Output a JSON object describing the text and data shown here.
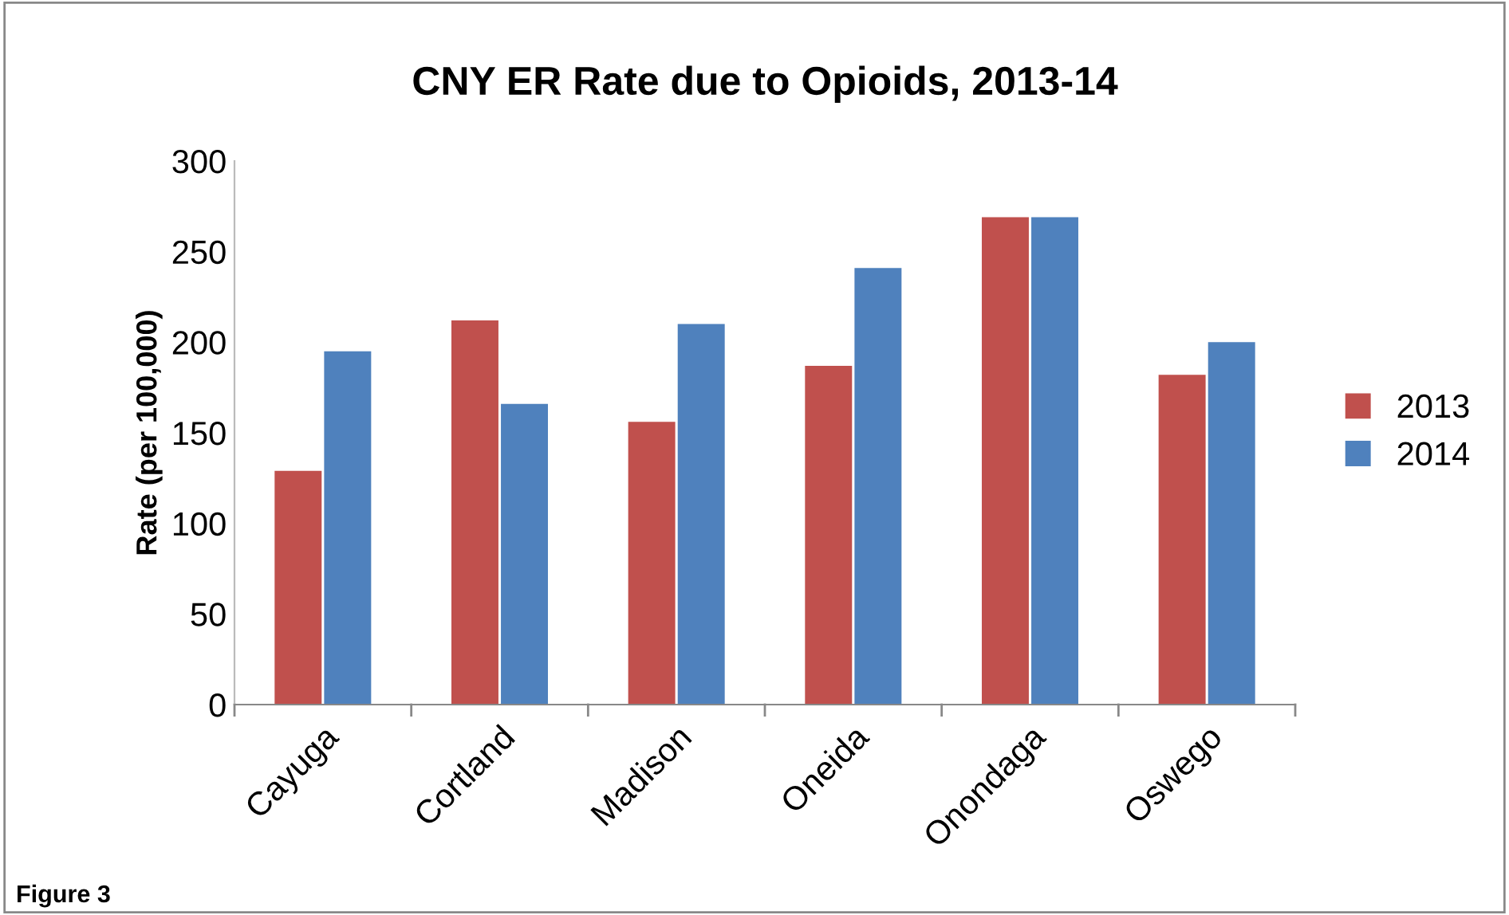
{
  "chart_data": {
    "type": "bar",
    "title": "CNY ER Rate due to Opioids, 2013-14",
    "ylabel": "Rate (per 100,000)",
    "categories": [
      "Cayuga",
      "Cortland",
      "Madison",
      "Oneida",
      "Onondaga",
      "Oswego"
    ],
    "series": [
      {
        "name": "2013",
        "color": "#c0504d",
        "values": [
          129,
          212,
          156,
          187,
          269,
          182
        ]
      },
      {
        "name": "2014",
        "color": "#4f81bd",
        "values": [
          195,
          166,
          210,
          241,
          269,
          200
        ]
      }
    ],
    "ylim": [
      0,
      300
    ],
    "yticks": [
      0,
      50,
      100,
      150,
      200,
      250,
      300
    ],
    "grid": false,
    "legend": "right",
    "annotations": [
      "Figure 3"
    ]
  }
}
